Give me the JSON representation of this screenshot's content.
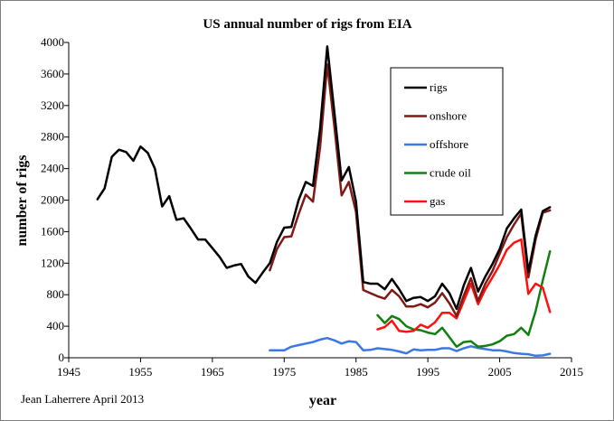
{
  "chart_data": {
    "type": "line",
    "title": "US annual number of rigs from EIA",
    "xlabel": "year",
    "ylabel": "number of rigs",
    "xlim": [
      1945,
      2015
    ],
    "ylim": [
      0,
      4000
    ],
    "xticks": [
      1945,
      1955,
      1965,
      1975,
      1985,
      1995,
      2005,
      2015
    ],
    "yticks": [
      0,
      400,
      800,
      1200,
      1600,
      2000,
      2400,
      2800,
      3200,
      3600,
      4000
    ],
    "grid": false,
    "legend_position": "top-right",
    "annotation": "Jean Laherrere April 2013",
    "series": [
      {
        "name": "rigs",
        "color": "#000000",
        "x": [
          1949,
          1950,
          1951,
          1952,
          1953,
          1954,
          1955,
          1956,
          1957,
          1958,
          1959,
          1960,
          1961,
          1962,
          1963,
          1964,
          1965,
          1966,
          1967,
          1968,
          1969,
          1970,
          1971,
          1972,
          1973,
          1974,
          1975,
          1976,
          1977,
          1978,
          1979,
          1980,
          1981,
          1982,
          1983,
          1984,
          1985,
          1986,
          1987,
          1988,
          1989,
          1990,
          1991,
          1992,
          1993,
          1994,
          1995,
          1996,
          1997,
          1998,
          1999,
          2000,
          2001,
          2002,
          2003,
          2004,
          2005,
          2006,
          2007,
          2008,
          2009,
          2010,
          2011,
          2012
        ],
        "y": [
          2010,
          2150,
          2550,
          2640,
          2610,
          2500,
          2680,
          2600,
          2400,
          1920,
          2050,
          1750,
          1770,
          1640,
          1500,
          1500,
          1390,
          1280,
          1140,
          1170,
          1190,
          1030,
          950,
          1080,
          1200,
          1470,
          1650,
          1660,
          2000,
          2230,
          2180,
          2910,
          3950,
          3100,
          2250,
          2420,
          1980,
          960,
          940,
          940,
          870,
          1000,
          870,
          720,
          760,
          770,
          720,
          780,
          940,
          820,
          620,
          920,
          1140,
          840,
          1030,
          1190,
          1380,
          1640,
          1770,
          1880,
          1090,
          1550,
          1860,
          1910
        ]
      },
      {
        "name": "onshore",
        "color": "#7f1a14",
        "x": [
          1973,
          1974,
          1975,
          1976,
          1977,
          1978,
          1979,
          1980,
          1981,
          1982,
          1983,
          1984,
          1985,
          1986,
          1987,
          1988,
          1989,
          1990,
          1991,
          1992,
          1993,
          1994,
          1995,
          1996,
          1997,
          1998,
          1999,
          2000,
          2001,
          2002,
          2003,
          2004,
          2005,
          2006,
          2007,
          2008,
          2009,
          2010,
          2011,
          2012
        ],
        "y": [
          1110,
          1380,
          1530,
          1540,
          1820,
          2070,
          1980,
          2670,
          3720,
          2920,
          2060,
          2230,
          1850,
          860,
          820,
          780,
          750,
          860,
          780,
          650,
          650,
          680,
          640,
          700,
          820,
          690,
          530,
          790,
          1010,
          720,
          940,
          1100,
          1320,
          1530,
          1690,
          1830,
          1020,
          1500,
          1840,
          1870
        ]
      },
      {
        "name": "offshore",
        "color": "#3b78e7",
        "x": [
          1973,
          1974,
          1975,
          1976,
          1977,
          1978,
          1979,
          1980,
          1981,
          1982,
          1983,
          1984,
          1985,
          1986,
          1987,
          1988,
          1989,
          1990,
          1991,
          1992,
          1993,
          1994,
          1995,
          1996,
          1997,
          1998,
          1999,
          2000,
          2001,
          2002,
          2003,
          2004,
          2005,
          2006,
          2007,
          2008,
          2009,
          2010,
          2011,
          2012
        ],
        "y": [
          95,
          95,
          95,
          140,
          160,
          180,
          200,
          230,
          250,
          220,
          180,
          210,
          200,
          95,
          100,
          120,
          110,
          100,
          80,
          55,
          105,
          95,
          100,
          100,
          120,
          120,
          85,
          120,
          145,
          125,
          110,
          95,
          95,
          80,
          60,
          50,
          45,
          25,
          30,
          50
        ]
      },
      {
        "name": "crude oil",
        "color": "#118011",
        "x": [
          1988,
          1989,
          1990,
          1991,
          1992,
          1993,
          1994,
          1995,
          1996,
          1997,
          1998,
          1999,
          2000,
          2001,
          2002,
          2003,
          2004,
          2005,
          2006,
          2007,
          2008,
          2009,
          2010,
          2011,
          2012
        ],
        "y": [
          540,
          440,
          530,
          490,
          400,
          360,
          350,
          320,
          300,
          380,
          260,
          140,
          200,
          210,
          140,
          150,
          170,
          210,
          280,
          300,
          380,
          290,
          590,
          980,
          1350
        ]
      },
      {
        "name": "gas",
        "color": "#ff1010",
        "x": [
          1988,
          1989,
          1990,
          1991,
          1992,
          1993,
          1994,
          1995,
          1996,
          1997,
          1998,
          1999,
          2000,
          2001,
          2002,
          2003,
          2004,
          2005,
          2006,
          2007,
          2008,
          2009,
          2010,
          2011,
          2012
        ],
        "y": [
          360,
          390,
          470,
          340,
          330,
          340,
          420,
          380,
          450,
          570,
          570,
          500,
          720,
          940,
          680,
          870,
          1020,
          1180,
          1370,
          1460,
          1500,
          810,
          940,
          890,
          580
        ]
      }
    ]
  }
}
